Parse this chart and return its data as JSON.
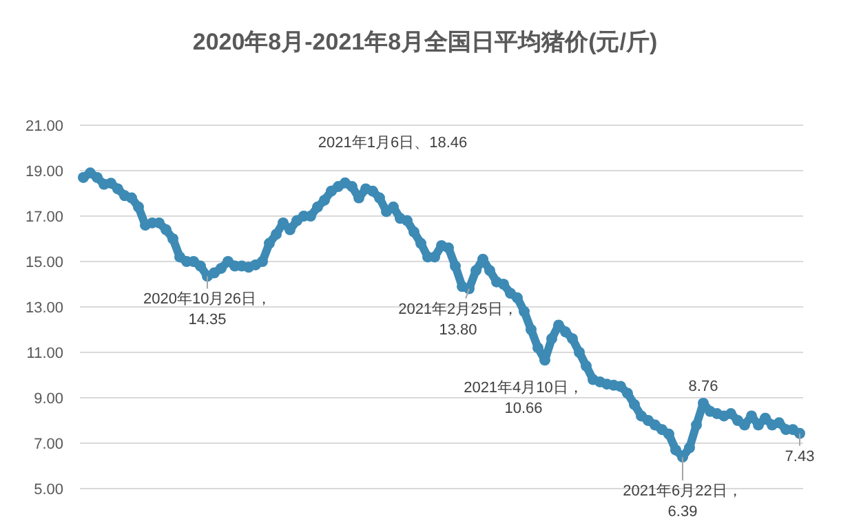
{
  "chart_data": {
    "type": "line",
    "line_style": "solid",
    "title": "2020年8月-2021年8月全国日平均猪价(元/斤)",
    "categories": [
      null,
      null,
      null,
      null,
      null,
      null,
      null,
      null,
      null,
      null,
      null,
      null,
      null,
      null,
      null,
      null,
      null,
      null,
      null,
      null,
      null,
      null,
      null,
      null,
      null,
      null,
      null,
      null,
      null,
      null,
      null,
      null,
      null,
      null,
      null,
      null,
      null,
      null,
      null,
      null,
      null,
      null,
      null,
      null,
      null,
      null,
      null,
      null,
      null,
      null,
      null,
      null,
      null,
      null,
      null,
      null,
      null,
      null,
      null,
      null,
      null,
      null,
      null,
      null,
      null,
      null,
      null,
      null,
      null,
      null,
      null,
      null,
      null,
      null,
      null,
      null,
      null,
      null,
      null,
      null,
      null,
      null,
      null,
      null,
      null,
      null,
      null,
      null,
      null,
      null,
      null,
      null,
      null,
      null,
      null,
      null,
      null,
      null,
      null,
      null,
      null,
      null,
      null,
      null,
      null
    ],
    "series": [
      {
        "color": "#3d8ab5",
        "values": [
          18.7,
          18.9,
          18.7,
          18.4,
          18.45,
          18.2,
          17.9,
          17.8,
          17.4,
          16.6,
          16.7,
          16.7,
          16.4,
          16.0,
          15.2,
          15.0,
          15.0,
          14.8,
          14.35,
          14.5,
          14.7,
          15.0,
          14.8,
          14.8,
          14.75,
          14.85,
          15.0,
          15.8,
          16.2,
          16.7,
          16.4,
          16.8,
          17.0,
          17.0,
          17.4,
          17.7,
          18.1,
          18.3,
          18.46,
          18.3,
          17.8,
          18.2,
          18.1,
          17.8,
          17.2,
          17.4,
          16.9,
          16.8,
          16.3,
          15.8,
          15.2,
          15.2,
          15.7,
          15.6,
          14.8,
          13.9,
          13.8,
          14.6,
          15.1,
          14.6,
          14.1,
          14.0,
          13.6,
          13.4,
          12.8,
          12.0,
          11.2,
          10.66,
          11.6,
          12.2,
          11.9,
          11.6,
          11.0,
          10.4,
          9.8,
          9.7,
          9.6,
          9.55,
          9.5,
          9.2,
          8.7,
          8.2,
          8.0,
          7.8,
          7.6,
          7.4,
          6.7,
          6.39,
          6.8,
          7.8,
          8.76,
          8.4,
          8.3,
          8.2,
          8.3,
          8.0,
          7.8,
          8.2,
          7.8,
          8.1,
          7.8,
          7.9,
          7.6,
          7.6,
          7.43
        ]
      }
    ],
    "ylim": [
      5,
      21
    ],
    "yticks": [
      {
        "value": 5,
        "label": "5.00"
      },
      {
        "value": 7,
        "label": "7.00"
      },
      {
        "value": 9,
        "label": "9.00"
      },
      {
        "value": 11,
        "label": "11.00"
      },
      {
        "value": 13,
        "label": "13.00"
      },
      {
        "value": 15,
        "label": "15.00"
      },
      {
        "value": 17,
        "label": "17.00"
      },
      {
        "value": 19,
        "label": "19.00"
      },
      {
        "value": 21,
        "label": "21.00"
      }
    ],
    "tick_labels": "y",
    "grid": "y",
    "marker": "circle",
    "annotations": [
      {
        "text": "2020年10月26日，\n14.35",
        "y": 14.35
      },
      "2021年1月6日、18.46",
      {
        "text": "2021年2月25日，\n13.80",
        "y": 13.8
      },
      "2021年4月10日，\n10.66",
      {
        "text": "2021年6月22日，\n6.39",
        "y": 6.39
      },
      {
        "text": "8.76",
        "y": 8.76
      },
      {
        "text": "7.43",
        "y": 7.43
      }
    ]
  }
}
